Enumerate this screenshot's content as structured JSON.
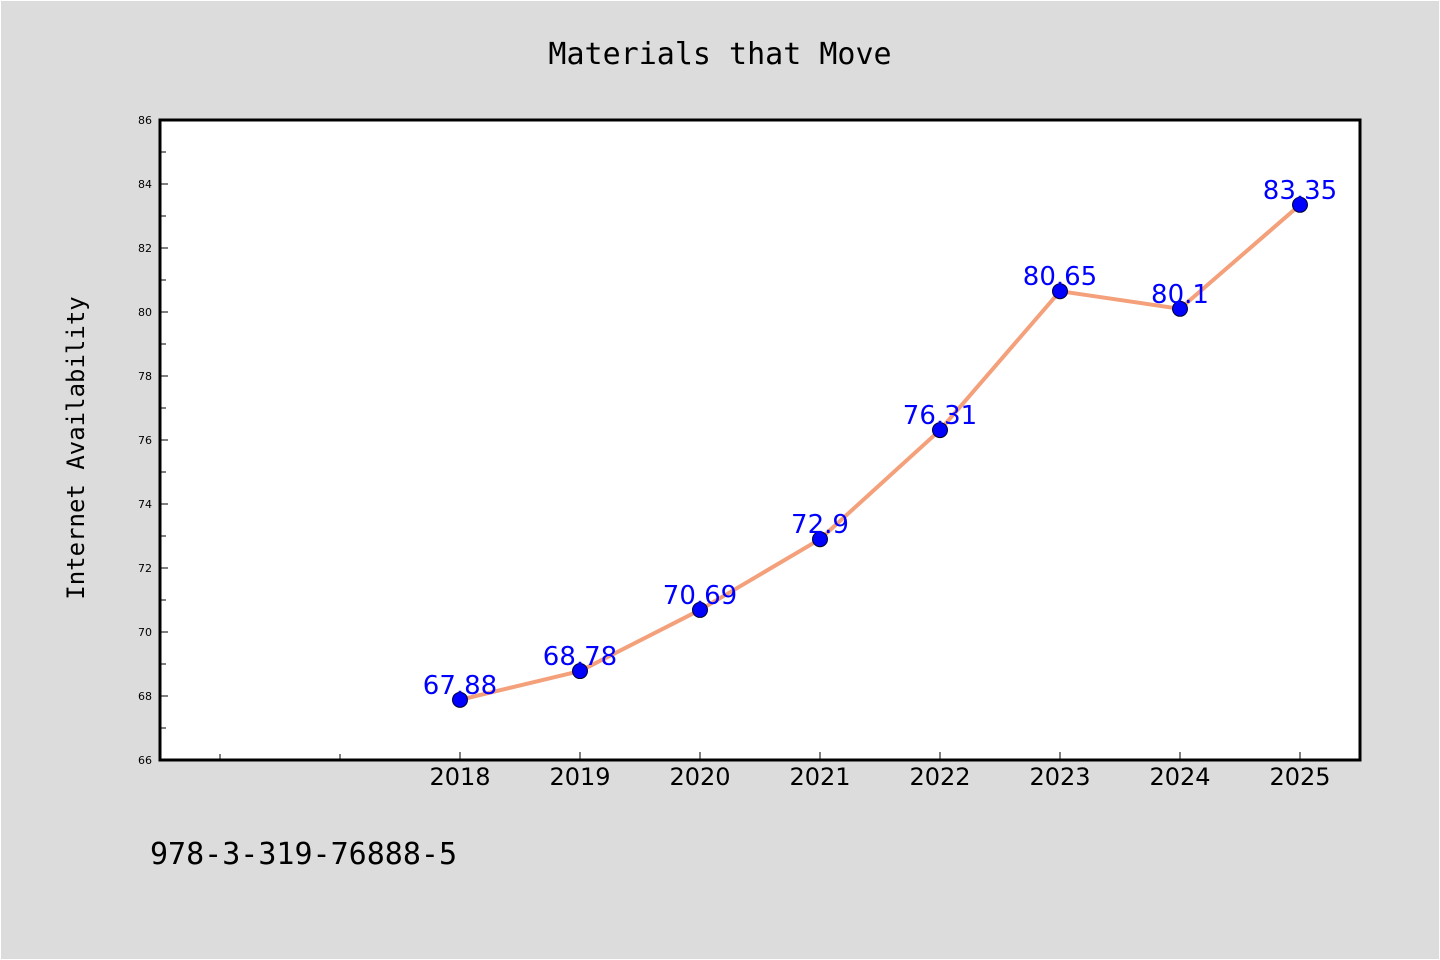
{
  "chart_data": {
    "type": "line",
    "title": "Materials that Move",
    "xlabel": "",
    "ylabel": "Internet Availability",
    "footer_text": "978-3-319-76888-5",
    "categories": [
      "2018",
      "2019",
      "2020",
      "2021",
      "2022",
      "2023",
      "2024",
      "2025"
    ],
    "series": [
      {
        "values": [
          67.88,
          68.78,
          70.69,
          72.9,
          76.31,
          80.65,
          80.1,
          83.35
        ]
      }
    ],
    "data_labels": [
      "67.88",
      "68.78",
      "70.69",
      "72.9",
      "76.31",
      "80.65",
      "80.1",
      "83.35"
    ],
    "ylim": [
      66,
      86
    ],
    "yticks": [
      66,
      68,
      70,
      72,
      74,
      76,
      78,
      80,
      82,
      84,
      86
    ],
    "grid": false,
    "legend": "none",
    "colors": {
      "background": "#dcdcdc",
      "plot_area": "#ffffff",
      "line": "#f4a07a",
      "marker": "#0000ff",
      "label": "#0000ff",
      "axis": "#000000"
    }
  }
}
